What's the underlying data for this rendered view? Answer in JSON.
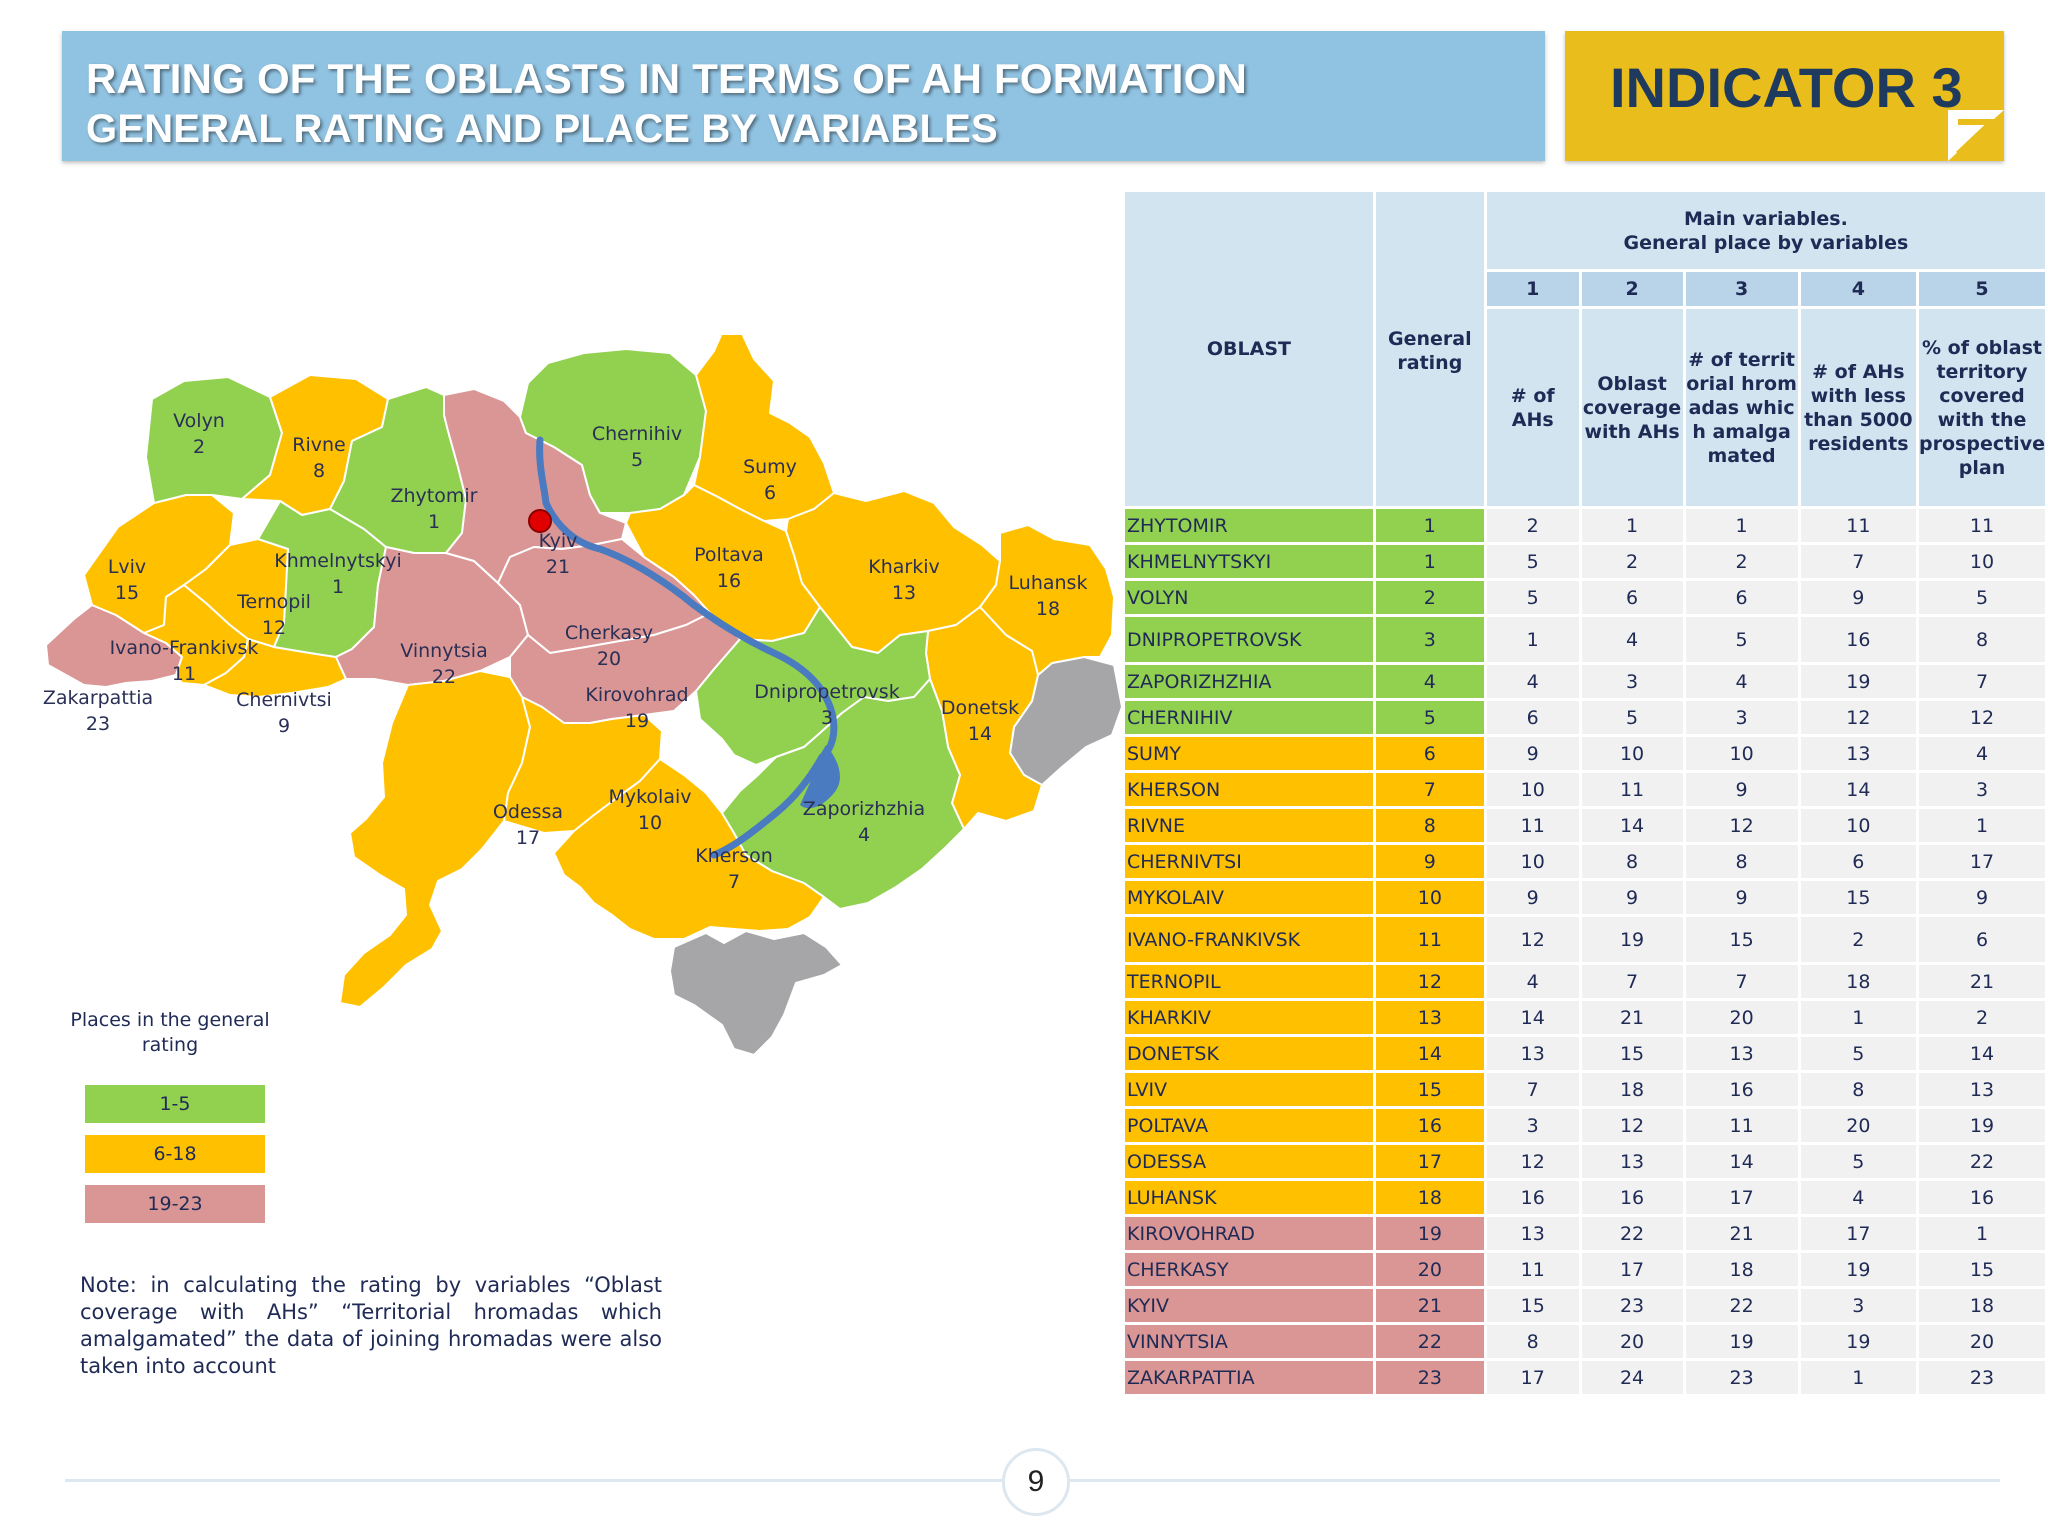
{
  "header": {
    "title_line1": "RATING OF THE OBLASTS IN TERMS OF AH FORMATION",
    "title_line2": "GENERAL RATING AND PLACE BY VARIABLES",
    "indicator": "INDICATOR 3"
  },
  "colors": {
    "banner_blue": "#90c2e1",
    "indicator_yellow": "#e9bd1b",
    "group_1_5": "#92d050",
    "group_6_18": "#ffc000",
    "group_19_23": "#da9694",
    "occupied_gray": "#a6a6a8",
    "river_blue": "#4a7ac0",
    "kyiv_marker": "#e00000"
  },
  "map": {
    "labels": {
      "volyn": {
        "name": "Volyn",
        "rank": "2"
      },
      "rivne": {
        "name": "Rivne",
        "rank": "8"
      },
      "zhytomir": {
        "name": "Zhytomir",
        "rank": "1"
      },
      "chernihiv": {
        "name": "Chernihiv",
        "rank": "5"
      },
      "sumy": {
        "name": "Sumy",
        "rank": "6"
      },
      "lviv": {
        "name": "Lviv",
        "rank": "15"
      },
      "khmelnytskyi": {
        "name": "Khmelnytskyi",
        "rank": "1"
      },
      "ternopil": {
        "name": "Ternopil",
        "rank": "12"
      },
      "kyiv": {
        "name": "Kyiv",
        "rank": "21"
      },
      "poltava": {
        "name": "Poltava",
        "rank": "16"
      },
      "kharkiv": {
        "name": "Kharkiv",
        "rank": "13"
      },
      "luhansk": {
        "name": "Luhansk",
        "rank": "18"
      },
      "ivano": {
        "name": "Ivano-Frankivsk",
        "rank": "11"
      },
      "vinnytsia": {
        "name": "Vinnytsia",
        "rank": "22"
      },
      "cherkasy": {
        "name": "Cherkasy",
        "rank": "20"
      },
      "zakarpattia": {
        "name": "Zakarpattia",
        "rank": "23"
      },
      "chernivtsi": {
        "name": "Chernivtsi",
        "rank": "9"
      },
      "kirovohrad": {
        "name": "Kirovohrad",
        "rank": "19"
      },
      "dnipro": {
        "name": "Dnipropetrovsk",
        "rank": "3"
      },
      "donetsk": {
        "name": "Donetsk",
        "rank": "14"
      },
      "odessa": {
        "name": "Odessa",
        "rank": "17"
      },
      "mykolaiv": {
        "name": "Mykolaiv",
        "rank": "10"
      },
      "zaporizhzhia": {
        "name": "Zaporizhzhia",
        "rank": "4"
      },
      "kherson": {
        "name": "Kherson",
        "rank": "7"
      }
    }
  },
  "legend": {
    "title": "Places in the general rating",
    "items": [
      "1-5",
      "6-18",
      "19-23"
    ]
  },
  "note": "Note: in calculating the rating by variables “Oblast coverage with AHs” “Territorial hromadas which amalgamated” the data of joining hromadas were also taken into account",
  "table": {
    "col_oblast": "OBLAST",
    "col_general": "General rating",
    "main_variables": "Main variables.\nGeneral place by variables",
    "var_numbers": [
      "1",
      "2",
      "3",
      "4",
      "5"
    ],
    "var_names": [
      "# of AHs",
      "Oblast coverage with AHs",
      "# of territorial hromadas which amalgamated",
      "# of AHs with less than 5000 residents",
      "% of oblast territory covered with the prospective plan"
    ],
    "rows": [
      {
        "oblast": "ZHYTOMIR",
        "rating": "1",
        "vars": [
          "2",
          "1",
          "1",
          "11",
          "11"
        ],
        "group": "g"
      },
      {
        "oblast": "KHMELNYTSKYI",
        "rating": "1",
        "vars": [
          "5",
          "2",
          "2",
          "7",
          "10"
        ],
        "group": "g"
      },
      {
        "oblast": "VOLYN",
        "rating": "2",
        "vars": [
          "5",
          "6",
          "6",
          "9",
          "5"
        ],
        "group": "g"
      },
      {
        "oblast": "DNIPROPETROVSK",
        "rating": "3",
        "vars": [
          "1",
          "4",
          "5",
          "16",
          "8"
        ],
        "group": "g"
      },
      {
        "oblast": "ZAPORIZHZHIA",
        "rating": "4",
        "vars": [
          "4",
          "3",
          "4",
          "19",
          "7"
        ],
        "group": "g"
      },
      {
        "oblast": "CHERNIHIV",
        "rating": "5",
        "vars": [
          "6",
          "5",
          "3",
          "12",
          "12"
        ],
        "group": "g"
      },
      {
        "oblast": "SUMY",
        "rating": "6",
        "vars": [
          "9",
          "10",
          "10",
          "13",
          "4"
        ],
        "group": "y"
      },
      {
        "oblast": "KHERSON",
        "rating": "7",
        "vars": [
          "10",
          "11",
          "9",
          "14",
          "3"
        ],
        "group": "y"
      },
      {
        "oblast": "RIVNE",
        "rating": "8",
        "vars": [
          "11",
          "14",
          "12",
          "10",
          "1"
        ],
        "group": "y"
      },
      {
        "oblast": "CHERNIVTSI",
        "rating": "9",
        "vars": [
          "10",
          "8",
          "8",
          "6",
          "17"
        ],
        "group": "y"
      },
      {
        "oblast": "MYKOLAIV",
        "rating": "10",
        "vars": [
          "9",
          "9",
          "9",
          "15",
          "9"
        ],
        "group": "y"
      },
      {
        "oblast": "IVANO-FRANKIVSK",
        "rating": "11",
        "vars": [
          "12",
          "19",
          "15",
          "2",
          "6"
        ],
        "group": "y"
      },
      {
        "oblast": "TERNOPIL",
        "rating": "12",
        "vars": [
          "4",
          "7",
          "7",
          "18",
          "21"
        ],
        "group": "y"
      },
      {
        "oblast": "KHARKIV",
        "rating": "13",
        "vars": [
          "14",
          "21",
          "20",
          "1",
          "2"
        ],
        "group": "y"
      },
      {
        "oblast": "DONETSK",
        "rating": "14",
        "vars": [
          "13",
          "15",
          "13",
          "5",
          "14"
        ],
        "group": "y"
      },
      {
        "oblast": "LVIV",
        "rating": "15",
        "vars": [
          "7",
          "18",
          "16",
          "8",
          "13"
        ],
        "group": "y"
      },
      {
        "oblast": "POLTAVA",
        "rating": "16",
        "vars": [
          "3",
          "12",
          "11",
          "20",
          "19"
        ],
        "group": "y"
      },
      {
        "oblast": "ODESSA",
        "rating": "17",
        "vars": [
          "12",
          "13",
          "14",
          "5",
          "22"
        ],
        "group": "y"
      },
      {
        "oblast": "LUHANSK",
        "rating": "18",
        "vars": [
          "16",
          "16",
          "17",
          "4",
          "16"
        ],
        "group": "y"
      },
      {
        "oblast": "KIROVOHRAD",
        "rating": "19",
        "vars": [
          "13",
          "22",
          "21",
          "17",
          "1"
        ],
        "group": "r"
      },
      {
        "oblast": "CHERKASY",
        "rating": "20",
        "vars": [
          "11",
          "17",
          "18",
          "19",
          "15"
        ],
        "group": "r"
      },
      {
        "oblast": "KYIV",
        "rating": "21",
        "vars": [
          "15",
          "23",
          "22",
          "3",
          "18"
        ],
        "group": "r"
      },
      {
        "oblast": "VINNYTSIA",
        "rating": "22",
        "vars": [
          "8",
          "20",
          "19",
          "19",
          "20"
        ],
        "group": "r"
      },
      {
        "oblast": "ZAKARPATTIA",
        "rating": "23",
        "vars": [
          "17",
          "24",
          "23",
          "1",
          "23"
        ],
        "group": "r"
      }
    ]
  },
  "footer": {
    "page_number": "9"
  }
}
